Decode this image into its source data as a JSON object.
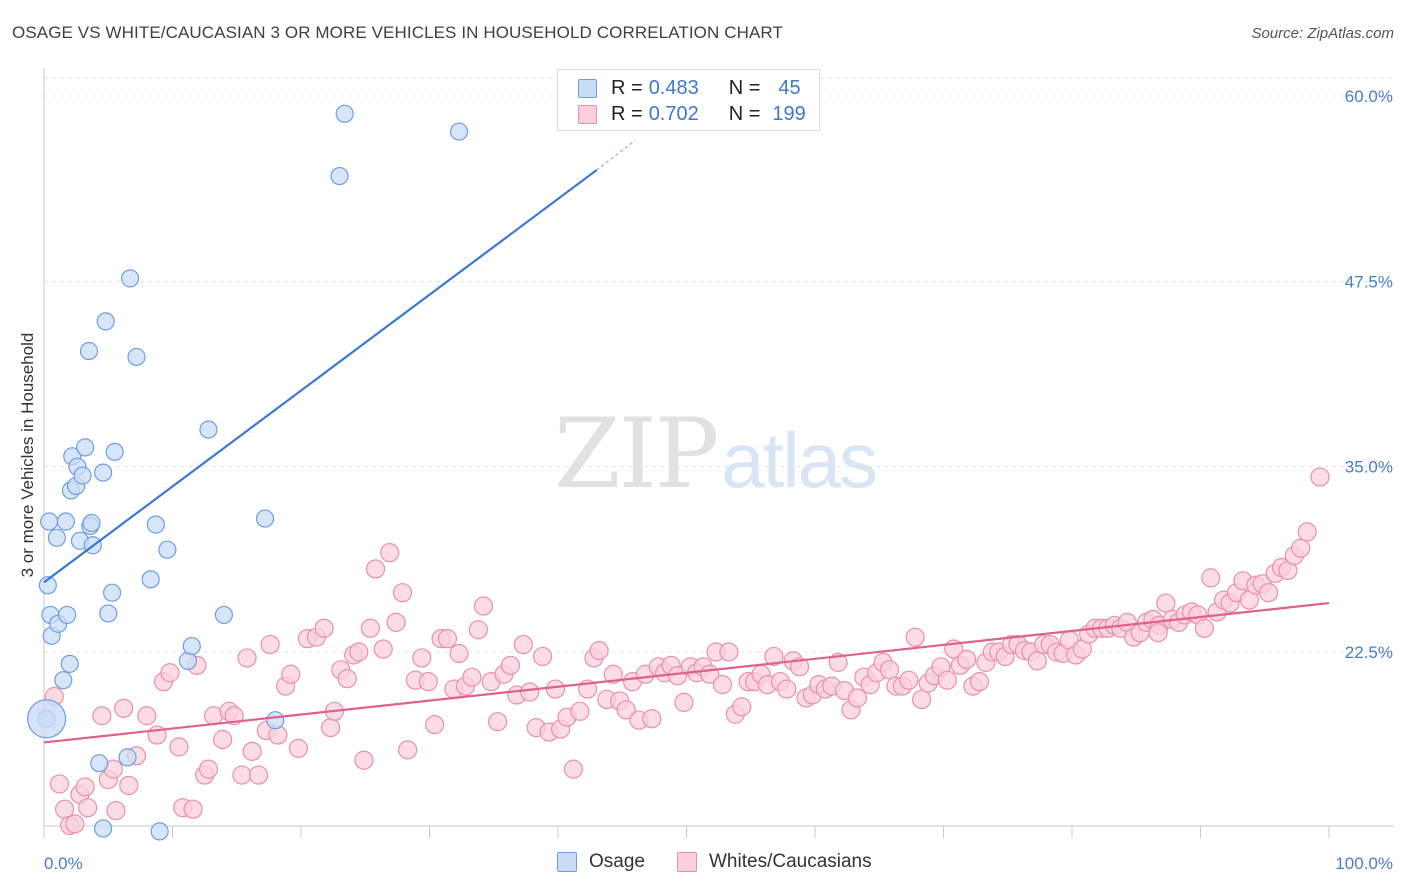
{
  "title": "OSAGE VS WHITE/CAUCASIAN 3 OR MORE VEHICLES IN HOUSEHOLD CORRELATION CHART",
  "source": "Source: ZipAtlas.com",
  "watermark": {
    "zip": "ZIP",
    "atlas": "atlas"
  },
  "legend": {
    "r_label": "R =",
    "n_label": "N =",
    "series": [
      {
        "name": "Osage",
        "r": "0.483",
        "n": "45",
        "fill": "#c9dcf6",
        "stroke": "#6f9de0"
      },
      {
        "name": "Whites/Caucasians",
        "r": "0.702",
        "n": "199",
        "fill": "#fad0dc",
        "stroke": "#e98fab"
      }
    ]
  },
  "chart_data": {
    "type": "scatter",
    "title": "OSAGE VS WHITE/CAUCASIAN 3 OR MORE VEHICLES IN HOUSEHOLD CORRELATION CHART",
    "xlabel": "",
    "ylabel": "3 or more Vehicles in Household",
    "x_range": [
      0,
      100
    ],
    "y_range": [
      10,
      62
    ],
    "x_ticks": [
      "0.0%",
      "100.0%"
    ],
    "y_ticks": [
      {
        "value": 22.5,
        "label": "22.5%"
      },
      {
        "value": 35.0,
        "label": "35.0%"
      },
      {
        "value": 47.5,
        "label": "47.5%"
      },
      {
        "value": 60.0,
        "label": "60.0%"
      }
    ],
    "grid": "dashed horizontal",
    "colors": {
      "osage_line": "#3a78d4",
      "white_line": "#e0608d",
      "grid": "#e3e3e3",
      "axis_text": "#4a7cc9"
    },
    "series": [
      {
        "name": "Osage",
        "trend": {
          "x": [
            0,
            43
          ],
          "y": [
            27.2,
            55.0
          ],
          "dashed_to": [
            46,
            57.0
          ]
        },
        "points": [
          [
            0.2,
            18.0
          ],
          [
            0.3,
            27.0
          ],
          [
            0.4,
            31.3
          ],
          [
            0.5,
            25.0
          ],
          [
            0.6,
            23.6
          ],
          [
            1.0,
            30.2
          ],
          [
            1.1,
            24.4
          ],
          [
            1.5,
            20.6
          ],
          [
            1.7,
            31.3
          ],
          [
            1.8,
            25.0
          ],
          [
            2.0,
            21.7
          ],
          [
            2.1,
            33.4
          ],
          [
            2.2,
            35.7
          ],
          [
            2.5,
            33.7
          ],
          [
            2.6,
            35.0
          ],
          [
            2.8,
            30.0
          ],
          [
            3.0,
            34.4
          ],
          [
            3.2,
            36.3
          ],
          [
            3.5,
            42.8
          ],
          [
            3.6,
            31.0
          ],
          [
            3.7,
            31.2
          ],
          [
            3.8,
            29.7
          ],
          [
            4.3,
            15.0
          ],
          [
            4.6,
            34.6
          ],
          [
            4.8,
            44.8
          ],
          [
            5.0,
            25.1
          ],
          [
            5.3,
            26.5
          ],
          [
            5.5,
            36.0
          ],
          [
            6.5,
            15.4
          ],
          [
            7.2,
            42.4
          ],
          [
            8.3,
            27.4
          ],
          [
            8.7,
            31.1
          ],
          [
            9.6,
            29.4
          ],
          [
            11.2,
            21.9
          ],
          [
            11.5,
            22.9
          ],
          [
            12.8,
            37.5
          ],
          [
            14.0,
            25.0
          ],
          [
            18.0,
            17.9
          ],
          [
            17.2,
            31.5
          ],
          [
            23.0,
            54.6
          ],
          [
            23.4,
            58.8
          ],
          [
            32.3,
            57.6
          ],
          [
            6.7,
            47.7
          ],
          [
            4.6,
            10.6
          ],
          [
            9.0,
            10.4
          ]
        ],
        "big_point": [
          0.2,
          18.0
        ]
      },
      {
        "name": "Whites/Caucasians",
        "trend": {
          "x": [
            0,
            100
          ],
          "y": [
            16.4,
            25.8
          ]
        },
        "points": [
          [
            0.8,
            19.5
          ],
          [
            1.2,
            13.6
          ],
          [
            1.6,
            11.9
          ],
          [
            2.0,
            10.8
          ],
          [
            2.4,
            10.9
          ],
          [
            2.8,
            12.9
          ],
          [
            3.2,
            13.4
          ],
          [
            3.4,
            12.0
          ],
          [
            4.5,
            18.2
          ],
          [
            5.0,
            13.9
          ],
          [
            5.4,
            14.6
          ],
          [
            5.6,
            11.8
          ],
          [
            6.2,
            18.7
          ],
          [
            6.6,
            13.5
          ],
          [
            7.2,
            15.5
          ],
          [
            8.0,
            18.2
          ],
          [
            8.8,
            16.9
          ],
          [
            9.3,
            20.5
          ],
          [
            9.8,
            21.1
          ],
          [
            10.5,
            16.1
          ],
          [
            10.8,
            12.0
          ],
          [
            11.6,
            11.9
          ],
          [
            11.9,
            21.6
          ],
          [
            12.5,
            14.2
          ],
          [
            12.8,
            14.6
          ],
          [
            13.2,
            18.2
          ],
          [
            13.9,
            16.6
          ],
          [
            14.4,
            18.5
          ],
          [
            14.8,
            18.2
          ],
          [
            15.4,
            14.2
          ],
          [
            15.8,
            22.1
          ],
          [
            16.2,
            15.8
          ],
          [
            16.7,
            14.2
          ],
          [
            17.3,
            17.2
          ],
          [
            17.6,
            23.0
          ],
          [
            18.2,
            16.9
          ],
          [
            18.8,
            20.2
          ],
          [
            19.2,
            21.0
          ],
          [
            19.8,
            16.0
          ],
          [
            20.5,
            23.4
          ],
          [
            21.2,
            23.5
          ],
          [
            21.8,
            24.1
          ],
          [
            22.3,
            17.4
          ],
          [
            22.6,
            18.5
          ],
          [
            23.1,
            21.3
          ],
          [
            23.6,
            20.7
          ],
          [
            24.1,
            22.3
          ],
          [
            24.5,
            22.5
          ],
          [
            24.9,
            15.2
          ],
          [
            25.4,
            24.1
          ],
          [
            25.8,
            28.1
          ],
          [
            26.4,
            22.7
          ],
          [
            26.9,
            29.2
          ],
          [
            27.4,
            24.5
          ],
          [
            27.9,
            26.5
          ],
          [
            28.3,
            15.9
          ],
          [
            28.9,
            20.6
          ],
          [
            29.4,
            22.1
          ],
          [
            29.9,
            20.5
          ],
          [
            30.4,
            17.6
          ],
          [
            30.9,
            23.4
          ],
          [
            31.4,
            23.4
          ],
          [
            31.9,
            20.0
          ],
          [
            32.3,
            22.4
          ],
          [
            32.8,
            20.2
          ],
          [
            33.3,
            20.8
          ],
          [
            33.8,
            24.0
          ],
          [
            34.2,
            25.6
          ],
          [
            34.8,
            20.5
          ],
          [
            35.3,
            17.8
          ],
          [
            35.8,
            21.0
          ],
          [
            36.3,
            21.6
          ],
          [
            36.8,
            19.6
          ],
          [
            37.3,
            23.0
          ],
          [
            37.8,
            19.8
          ],
          [
            38.3,
            17.4
          ],
          [
            38.8,
            22.2
          ],
          [
            39.3,
            17.1
          ],
          [
            39.8,
            20.0
          ],
          [
            40.2,
            17.3
          ],
          [
            40.7,
            18.1
          ],
          [
            41.2,
            14.6
          ],
          [
            41.7,
            18.5
          ],
          [
            42.3,
            20.0
          ],
          [
            42.8,
            22.1
          ],
          [
            43.2,
            22.6
          ],
          [
            43.8,
            19.3
          ],
          [
            44.3,
            21.0
          ],
          [
            44.8,
            19.2
          ],
          [
            45.3,
            18.6
          ],
          [
            45.8,
            20.5
          ],
          [
            46.3,
            17.9
          ],
          [
            46.8,
            21.0
          ],
          [
            47.3,
            18.0
          ],
          [
            47.8,
            21.5
          ],
          [
            48.3,
            21.1
          ],
          [
            48.8,
            21.6
          ],
          [
            49.3,
            20.9
          ],
          [
            49.8,
            19.1
          ],
          [
            50.3,
            21.5
          ],
          [
            50.8,
            21.1
          ],
          [
            51.3,
            21.5
          ],
          [
            51.8,
            21.0
          ],
          [
            52.3,
            22.5
          ],
          [
            52.8,
            20.3
          ],
          [
            53.3,
            22.5
          ],
          [
            53.8,
            18.3
          ],
          [
            54.3,
            18.8
          ],
          [
            54.8,
            20.5
          ],
          [
            55.3,
            20.5
          ],
          [
            55.8,
            21.0
          ],
          [
            56.3,
            20.3
          ],
          [
            56.8,
            22.2
          ],
          [
            57.3,
            20.5
          ],
          [
            57.8,
            20.0
          ],
          [
            58.3,
            21.9
          ],
          [
            58.8,
            21.5
          ],
          [
            59.3,
            19.4
          ],
          [
            59.8,
            19.6
          ],
          [
            60.3,
            20.3
          ],
          [
            60.8,
            20.0
          ],
          [
            61.3,
            20.2
          ],
          [
            61.8,
            21.8
          ],
          [
            62.3,
            19.9
          ],
          [
            62.8,
            18.6
          ],
          [
            63.3,
            19.4
          ],
          [
            63.8,
            20.8
          ],
          [
            64.3,
            20.3
          ],
          [
            64.8,
            21.1
          ],
          [
            65.3,
            21.8
          ],
          [
            65.8,
            21.3
          ],
          [
            66.3,
            20.2
          ],
          [
            66.8,
            20.2
          ],
          [
            67.3,
            20.6
          ],
          [
            67.8,
            23.5
          ],
          [
            68.3,
            19.3
          ],
          [
            68.8,
            20.4
          ],
          [
            69.3,
            20.9
          ],
          [
            69.8,
            21.5
          ],
          [
            70.3,
            20.6
          ],
          [
            70.8,
            22.7
          ],
          [
            71.3,
            21.6
          ],
          [
            71.8,
            22.0
          ],
          [
            72.3,
            20.2
          ],
          [
            72.8,
            20.5
          ],
          [
            73.3,
            21.8
          ],
          [
            73.8,
            22.5
          ],
          [
            74.3,
            22.5
          ],
          [
            74.8,
            22.2
          ],
          [
            75.3,
            23.0
          ],
          [
            75.8,
            23.0
          ],
          [
            76.3,
            22.6
          ],
          [
            76.8,
            22.5
          ],
          [
            77.3,
            21.9
          ],
          [
            77.8,
            23.0
          ],
          [
            78.3,
            23.0
          ],
          [
            78.8,
            22.5
          ],
          [
            79.3,
            22.4
          ],
          [
            79.8,
            23.3
          ],
          [
            80.3,
            22.3
          ],
          [
            80.8,
            22.7
          ],
          [
            81.3,
            23.7
          ],
          [
            81.8,
            24.1
          ],
          [
            82.3,
            24.1
          ],
          [
            82.8,
            24.1
          ],
          [
            83.3,
            24.3
          ],
          [
            83.8,
            24.1
          ],
          [
            84.3,
            24.5
          ],
          [
            84.8,
            23.5
          ],
          [
            85.3,
            23.8
          ],
          [
            85.8,
            24.5
          ],
          [
            86.3,
            24.7
          ],
          [
            86.8,
            24.3
          ],
          [
            87.3,
            25.8
          ],
          [
            87.8,
            24.7
          ],
          [
            88.3,
            24.5
          ],
          [
            88.8,
            25.0
          ],
          [
            89.3,
            25.2
          ],
          [
            89.8,
            25.0
          ],
          [
            90.3,
            24.1
          ],
          [
            90.8,
            27.5
          ],
          [
            91.3,
            25.2
          ],
          [
            91.8,
            26.0
          ],
          [
            92.3,
            25.8
          ],
          [
            92.8,
            26.5
          ],
          [
            93.3,
            27.3
          ],
          [
            93.8,
            26.0
          ],
          [
            94.3,
            27.0
          ],
          [
            94.8,
            27.1
          ],
          [
            95.3,
            26.5
          ],
          [
            95.8,
            27.8
          ],
          [
            96.3,
            28.2
          ],
          [
            96.8,
            28.0
          ],
          [
            97.3,
            29.0
          ],
          [
            97.8,
            29.5
          ],
          [
            98.3,
            30.6
          ],
          [
            99.3,
            34.3
          ],
          [
            86.7,
            23.8
          ]
        ]
      }
    ]
  }
}
